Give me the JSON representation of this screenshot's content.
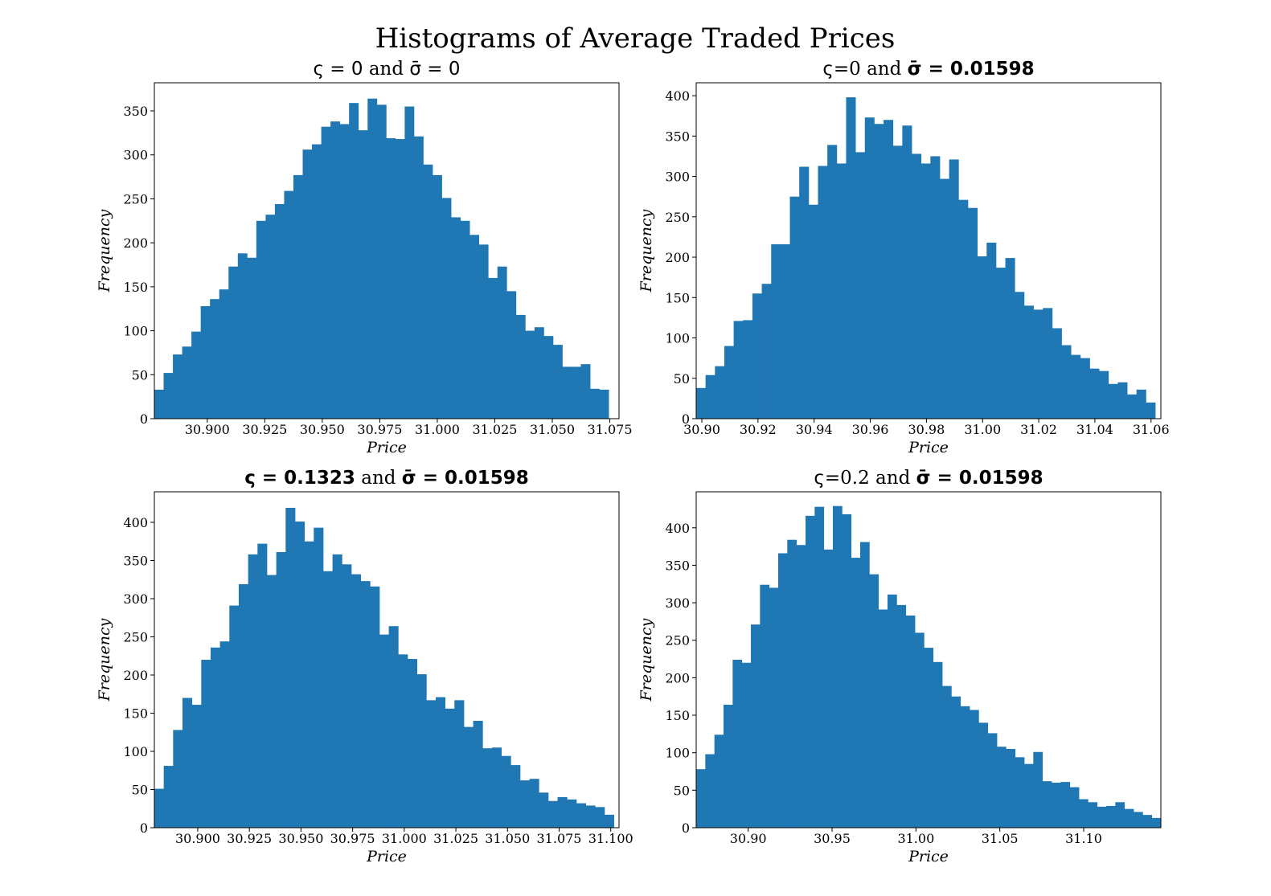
{
  "figure": {
    "title": "Histograms of Average Traded Prices"
  },
  "colors": {
    "bar": "#1f77b4"
  },
  "chart_data": [
    {
      "type": "bar",
      "title_parts": [
        {
          "text": "ς = 0",
          "style": "sans"
        },
        {
          "text": " and ",
          "style": "normal"
        },
        {
          "text": "σ̄ = 0",
          "style": "sans"
        }
      ],
      "xlabel": "Price",
      "ylabel": "Frequency",
      "xlim": [
        30.877,
        31.079
      ],
      "ylim": [
        0,
        382
      ],
      "xticks": [
        30.9,
        30.925,
        30.95,
        30.975,
        31.0,
        31.025,
        31.05,
        31.075
      ],
      "xtick_labels": [
        "30.900",
        "30.925",
        "30.950",
        "30.975",
        "31.000",
        "31.025",
        "31.050",
        "31.075"
      ],
      "yticks": [
        0,
        50,
        100,
        150,
        200,
        250,
        300,
        350
      ],
      "ytick_labels": [
        "0",
        "50",
        "100",
        "150",
        "200",
        "250",
        "300",
        "350"
      ],
      "bin_start": 30.877,
      "bin_end": 31.0745,
      "values": [
        33,
        52,
        73,
        82,
        99,
        128,
        136,
        147,
        173,
        188,
        183,
        225,
        232,
        244,
        259,
        277,
        306,
        312,
        332,
        338,
        335,
        359,
        328,
        364,
        357,
        319,
        318,
        355,
        321,
        289,
        277,
        251,
        229,
        225,
        209,
        198,
        160,
        173,
        145,
        118,
        100,
        104,
        94,
        84,
        59,
        59,
        62,
        34,
        33
      ]
    },
    {
      "type": "bar",
      "title_parts": [
        {
          "text": "ς",
          "style": "sans"
        },
        {
          "text": "=0 and ",
          "style": "normal"
        },
        {
          "text": "σ̄ = 0.01598",
          "style": "bold"
        }
      ],
      "xlabel": "Price",
      "ylabel": "Frequency",
      "xlim": [
        30.898,
        31.0635
      ],
      "ylim": [
        0,
        416
      ],
      "xticks": [
        30.9,
        30.92,
        30.94,
        30.96,
        30.98,
        31.0,
        31.02,
        31.04,
        31.06
      ],
      "xtick_labels": [
        "30.90",
        "30.92",
        "30.94",
        "30.96",
        "30.98",
        "31.00",
        "31.02",
        "31.04",
        "31.06"
      ],
      "yticks": [
        0,
        50,
        100,
        150,
        200,
        250,
        300,
        350,
        400
      ],
      "ytick_labels": [
        "0",
        "50",
        "100",
        "150",
        "200",
        "250",
        "300",
        "350",
        "400"
      ],
      "bin_start": 30.898,
      "bin_end": 31.0615,
      "values": [
        38,
        54,
        65,
        90,
        121,
        122,
        155,
        167,
        216,
        216,
        275,
        312,
        265,
        313,
        339,
        316,
        398,
        330,
        373,
        365,
        370,
        338,
        363,
        328,
        316,
        325,
        297,
        321,
        271,
        261,
        201,
        218,
        187,
        199,
        157,
        140,
        135,
        137,
        112,
        91,
        79,
        75,
        62,
        59,
        43,
        45,
        30,
        36,
        20
      ]
    },
    {
      "type": "bar",
      "title_parts": [
        {
          "text": "ς = 0.1323",
          "style": "bold"
        },
        {
          "text": " and ",
          "style": "normal"
        },
        {
          "text": "σ̄ = 0.01598",
          "style": "bold"
        }
      ],
      "xlabel": "Price",
      "ylabel": "Frequency",
      "xlim": [
        30.879,
        31.104
      ],
      "ylim": [
        0,
        440
      ],
      "xticks": [
        30.9,
        30.925,
        30.95,
        30.975,
        31.0,
        31.025,
        31.05,
        31.075,
        31.1
      ],
      "xtick_labels": [
        "30.900",
        "30.925",
        "30.950",
        "30.975",
        "31.000",
        "31.025",
        "31.050",
        "31.075",
        "31.100"
      ],
      "yticks": [
        0,
        50,
        100,
        150,
        200,
        250,
        300,
        350,
        400
      ],
      "ytick_labels": [
        "0",
        "50",
        "100",
        "150",
        "200",
        "250",
        "300",
        "350",
        "400"
      ],
      "bin_start": 30.879,
      "bin_end": 31.1015,
      "values": [
        51,
        81,
        128,
        170,
        161,
        220,
        236,
        244,
        291,
        319,
        358,
        372,
        331,
        361,
        419,
        401,
        375,
        393,
        336,
        358,
        345,
        332,
        323,
        316,
        253,
        264,
        227,
        221,
        201,
        167,
        171,
        156,
        167,
        132,
        140,
        104,
        105,
        94,
        82,
        62,
        64,
        46,
        35,
        40,
        37,
        32,
        29,
        27,
        17
      ]
    },
    {
      "type": "bar",
      "title_parts": [
        {
          "text": "ς",
          "style": "sans"
        },
        {
          "text": "=0.2 and ",
          "style": "normal"
        },
        {
          "text": "σ̄ = 0.01598",
          "style": "bold"
        }
      ],
      "xlabel": "Price",
      "ylabel": "Frequency",
      "xlim": [
        30.869,
        31.146
      ],
      "ylim": [
        0,
        448
      ],
      "xticks": [
        30.9,
        30.95,
        31.0,
        31.05,
        31.1
      ],
      "xtick_labels": [
        "30.90",
        "30.95",
        "31.00",
        "31.05",
        "31.10"
      ],
      "yticks": [
        0,
        50,
        100,
        150,
        200,
        250,
        300,
        350,
        400
      ],
      "ytick_labels": [
        "0",
        "50",
        "100",
        "150",
        "200",
        "250",
        "300",
        "350",
        "400"
      ],
      "bin_start": 30.869,
      "bin_end": 31.146,
      "values": [
        78,
        98,
        124,
        164,
        224,
        220,
        271,
        324,
        320,
        366,
        384,
        377,
        416,
        428,
        371,
        429,
        418,
        360,
        381,
        338,
        291,
        311,
        297,
        283,
        260,
        240,
        221,
        189,
        175,
        162,
        157,
        140,
        126,
        108,
        105,
        94,
        85,
        101,
        62,
        60,
        61,
        54,
        38,
        34,
        28,
        29,
        34,
        25,
        21,
        17,
        13
      ]
    }
  ]
}
